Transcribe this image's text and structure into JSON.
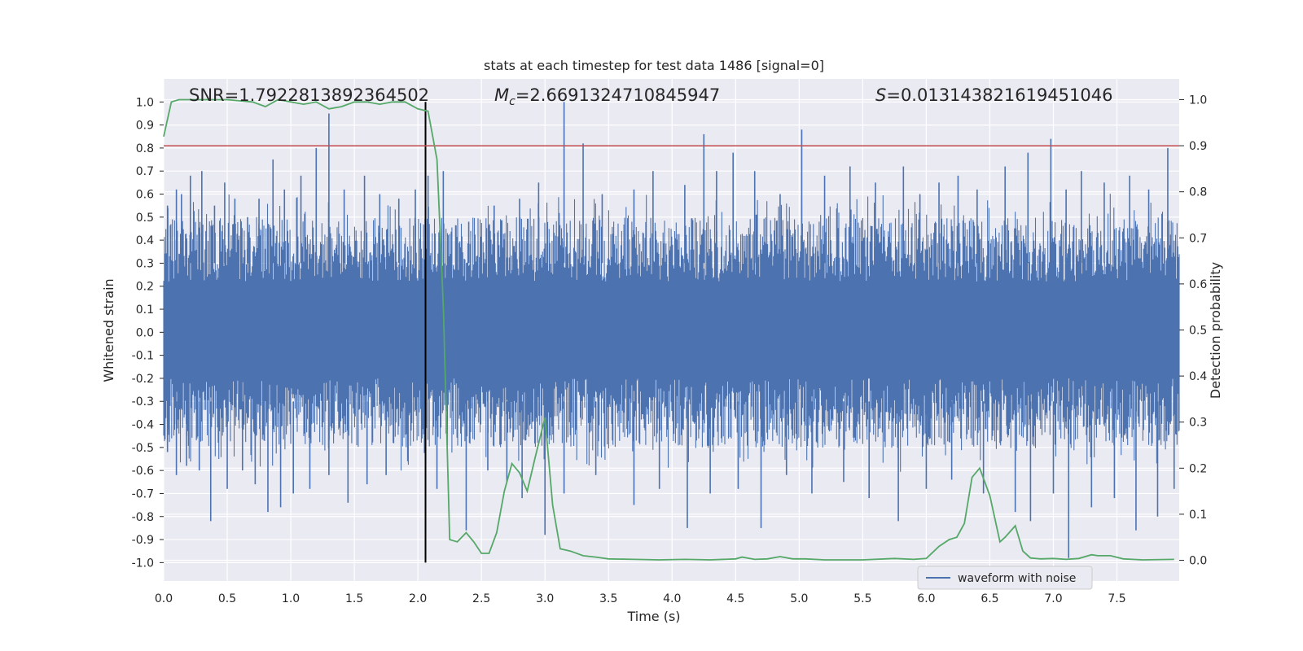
{
  "chart_data": {
    "type": "line",
    "title": "stats at each timestep for test data 1486 [signal=0]",
    "xlabel": "Time (s)",
    "ylabel_left": "Whitened strain",
    "ylabel_right": "Detection probability",
    "xlim": [
      0.0,
      7.99
    ],
    "ylim_left": [
      -1.08,
      1.1
    ],
    "ylim_right": [
      -0.045,
      1.045
    ],
    "x_ticks": [
      "0.0",
      "0.5",
      "1.0",
      "1.5",
      "2.0",
      "2.5",
      "3.0",
      "3.5",
      "4.0",
      "4.5",
      "5.0",
      "5.5",
      "6.0",
      "6.5",
      "7.0",
      "7.5"
    ],
    "y_ticks_left": [
      "1.0",
      "0.9",
      "0.8",
      "0.7",
      "0.6",
      "0.5",
      "0.4",
      "0.3",
      "0.2",
      "0.1",
      "0.0",
      "-0.1",
      "-0.2",
      "-0.3",
      "-0.4",
      "-0.5",
      "-0.6",
      "-0.7",
      "-0.8",
      "-0.9",
      "-1.0"
    ],
    "y_ticks_right": [
      "1.0",
      "0.9",
      "0.8",
      "0.7",
      "0.6",
      "0.5",
      "0.4",
      "0.3",
      "0.2",
      "0.1",
      "0.0"
    ],
    "grid": true,
    "background": "#eaeaf2",
    "annotations": {
      "snr": "SNR=1.7922813892364502",
      "mc_symbol": "M",
      "mc_sub": "c",
      "mc_value": "=2.6691324710845947",
      "s_symbol": "S",
      "s_value": "=0.013143821619451046"
    },
    "legend": {
      "label": "waveform with noise",
      "position": "lower-right"
    },
    "waveform": {
      "name": "waveform with noise",
      "color": "#4c72b0",
      "x_range": [
        0.0,
        7.99
      ],
      "dense_band": [
        -0.2,
        0.2
      ],
      "peaks_pos": [
        [
          0.03,
          0.55
        ],
        [
          0.1,
          0.62
        ],
        [
          0.14,
          0.6
        ],
        [
          0.21,
          0.68
        ],
        [
          0.3,
          0.7
        ],
        [
          0.4,
          0.55
        ],
        [
          0.48,
          0.65
        ],
        [
          0.56,
          0.58
        ],
        [
          0.66,
          0.5
        ],
        [
          0.75,
          0.58
        ],
        [
          0.86,
          0.75
        ],
        [
          0.95,
          0.62
        ],
        [
          1.08,
          0.68
        ],
        [
          1.2,
          0.8
        ],
        [
          1.3,
          0.95
        ],
        [
          1.42,
          0.62
        ],
        [
          1.58,
          0.68
        ],
        [
          1.7,
          0.6
        ],
        [
          1.85,
          0.58
        ],
        [
          1.98,
          0.62
        ],
        [
          2.08,
          0.68
        ],
        [
          2.2,
          0.7
        ],
        [
          2.4,
          0.48
        ],
        [
          2.6,
          0.55
        ],
        [
          2.8,
          0.58
        ],
        [
          2.95,
          0.65
        ],
        [
          3.15,
          1.0
        ],
        [
          3.3,
          0.82
        ],
        [
          3.45,
          0.6
        ],
        [
          3.7,
          0.62
        ],
        [
          3.85,
          0.7
        ],
        [
          4.1,
          0.64
        ],
        [
          4.25,
          0.86
        ],
        [
          4.35,
          0.7
        ],
        [
          4.48,
          0.78
        ],
        [
          4.65,
          0.7
        ],
        [
          4.85,
          0.6
        ],
        [
          5.02,
          0.88
        ],
        [
          5.2,
          0.68
        ],
        [
          5.4,
          0.72
        ],
        [
          5.6,
          0.65
        ],
        [
          5.82,
          0.72
        ],
        [
          5.95,
          0.6
        ],
        [
          6.1,
          0.65
        ],
        [
          6.25,
          0.68
        ],
        [
          6.4,
          0.62
        ],
        [
          6.62,
          0.72
        ],
        [
          6.8,
          0.78
        ],
        [
          6.98,
          0.84
        ],
        [
          7.1,
          0.62
        ],
        [
          7.22,
          0.7
        ],
        [
          7.4,
          0.65
        ],
        [
          7.6,
          0.68
        ],
        [
          7.75,
          0.62
        ],
        [
          7.9,
          0.8
        ]
      ],
      "peaks_neg": [
        [
          0.03,
          -0.52
        ],
        [
          0.1,
          -0.62
        ],
        [
          0.18,
          -0.58
        ],
        [
          0.28,
          -0.6
        ],
        [
          0.37,
          -0.82
        ],
        [
          0.5,
          -0.68
        ],
        [
          0.62,
          -0.6
        ],
        [
          0.72,
          -0.66
        ],
        [
          0.82,
          -0.78
        ],
        [
          0.92,
          -0.76
        ],
        [
          1.02,
          -0.7
        ],
        [
          1.15,
          -0.68
        ],
        [
          1.3,
          -0.62
        ],
        [
          1.45,
          -0.74
        ],
        [
          1.6,
          -0.66
        ],
        [
          1.75,
          -0.62
        ],
        [
          1.92,
          -0.56
        ],
        [
          2.06,
          -0.58
        ],
        [
          2.15,
          -0.68
        ],
        [
          2.38,
          -0.86
        ],
        [
          2.55,
          -0.6
        ],
        [
          2.7,
          -0.65
        ],
        [
          2.82,
          -0.72
        ],
        [
          3.0,
          -0.88
        ],
        [
          3.15,
          -0.7
        ],
        [
          3.4,
          -0.62
        ],
        [
          3.7,
          -0.75
        ],
        [
          3.9,
          -0.68
        ],
        [
          4.12,
          -0.85
        ],
        [
          4.3,
          -0.7
        ],
        [
          4.52,
          -0.68
        ],
        [
          4.7,
          -0.85
        ],
        [
          4.9,
          -0.62
        ],
        [
          5.1,
          -0.7
        ],
        [
          5.35,
          -0.65
        ],
        [
          5.55,
          -0.72
        ],
        [
          5.78,
          -0.82
        ],
        [
          6.0,
          -0.68
        ],
        [
          6.2,
          -0.64
        ],
        [
          6.45,
          -0.7
        ],
        [
          6.7,
          -0.78
        ],
        [
          6.82,
          -0.82
        ],
        [
          7.0,
          -0.7
        ],
        [
          7.12,
          -0.98
        ],
        [
          7.3,
          -0.76
        ],
        [
          7.48,
          -0.72
        ],
        [
          7.65,
          -0.86
        ],
        [
          7.82,
          -0.8
        ],
        [
          7.95,
          -0.68
        ]
      ]
    },
    "detection_probability": {
      "color": "#55a868",
      "points": [
        [
          0.0,
          0.92
        ],
        [
          0.06,
          0.995
        ],
        [
          0.12,
          1.0
        ],
        [
          0.3,
          1.0
        ],
        [
          0.5,
          1.0
        ],
        [
          0.7,
          0.995
        ],
        [
          0.8,
          0.985
        ],
        [
          0.9,
          1.0
        ],
        [
          1.0,
          0.995
        ],
        [
          1.1,
          0.99
        ],
        [
          1.2,
          0.995
        ],
        [
          1.3,
          0.98
        ],
        [
          1.4,
          0.985
        ],
        [
          1.5,
          0.995
        ],
        [
          1.6,
          0.995
        ],
        [
          1.7,
          0.99
        ],
        [
          1.8,
          0.995
        ],
        [
          1.9,
          0.995
        ],
        [
          2.0,
          0.98
        ],
        [
          2.08,
          0.975
        ],
        [
          2.15,
          0.87
        ],
        [
          2.2,
          0.55
        ],
        [
          2.25,
          0.045
        ],
        [
          2.31,
          0.04
        ],
        [
          2.38,
          0.06
        ],
        [
          2.44,
          0.04
        ],
        [
          2.5,
          0.015
        ],
        [
          2.56,
          0.015
        ],
        [
          2.62,
          0.06
        ],
        [
          2.68,
          0.15
        ],
        [
          2.74,
          0.21
        ],
        [
          2.8,
          0.19
        ],
        [
          2.86,
          0.15
        ],
        [
          2.92,
          0.22
        ],
        [
          3.0,
          0.31
        ],
        [
          3.06,
          0.12
        ],
        [
          3.12,
          0.025
        ],
        [
          3.2,
          0.02
        ],
        [
          3.3,
          0.01
        ],
        [
          3.4,
          0.007
        ],
        [
          3.5,
          0.003
        ],
        [
          3.7,
          0.002
        ],
        [
          3.9,
          0.001
        ],
        [
          4.1,
          0.002
        ],
        [
          4.3,
          0.001
        ],
        [
          4.5,
          0.003
        ],
        [
          4.55,
          0.007
        ],
        [
          4.65,
          0.002
        ],
        [
          4.75,
          0.003
        ],
        [
          4.85,
          0.008
        ],
        [
          4.95,
          0.003
        ],
        [
          5.05,
          0.003
        ],
        [
          5.2,
          0.001
        ],
        [
          5.5,
          0.001
        ],
        [
          5.75,
          0.004
        ],
        [
          5.9,
          0.002
        ],
        [
          6.0,
          0.004
        ],
        [
          6.1,
          0.03
        ],
        [
          6.18,
          0.045
        ],
        [
          6.24,
          0.05
        ],
        [
          6.3,
          0.08
        ],
        [
          6.36,
          0.18
        ],
        [
          6.42,
          0.2
        ],
        [
          6.5,
          0.14
        ],
        [
          6.58,
          0.04
        ],
        [
          6.62,
          0.05
        ],
        [
          6.7,
          0.075
        ],
        [
          6.76,
          0.02
        ],
        [
          6.82,
          0.005
        ],
        [
          6.9,
          0.003
        ],
        [
          7.0,
          0.004
        ],
        [
          7.1,
          0.002
        ],
        [
          7.2,
          0.004
        ],
        [
          7.3,
          0.012
        ],
        [
          7.35,
          0.01
        ],
        [
          7.45,
          0.01
        ],
        [
          7.55,
          0.003
        ],
        [
          7.7,
          0.001
        ],
        [
          7.95,
          0.002
        ]
      ]
    },
    "threshold": {
      "value": 0.9,
      "color": "#c44e52"
    },
    "marker_x": 2.06
  }
}
